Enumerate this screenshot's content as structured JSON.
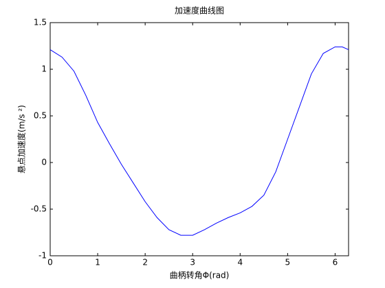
{
  "chart_data": {
    "type": "line",
    "title": "加速度曲线图",
    "xlabel": "曲柄转角Φ(rad)",
    "ylabel": "悬点加速度(m/s ²)",
    "x": [
      0,
      0.25,
      0.5,
      0.75,
      1.0,
      1.25,
      1.5,
      1.75,
      2.0,
      2.25,
      2.5,
      2.75,
      3.0,
      3.25,
      3.5,
      3.75,
      4.0,
      4.25,
      4.5,
      4.75,
      5.0,
      5.25,
      5.5,
      5.75,
      6.0,
      6.15,
      6.2832
    ],
    "series": [
      {
        "color": "#0000ff",
        "values": [
          1.21,
          1.13,
          0.98,
          0.72,
          0.43,
          0.2,
          -0.02,
          -0.22,
          -0.42,
          -0.59,
          -0.72,
          -0.78,
          -0.78,
          -0.72,
          -0.65,
          -0.59,
          -0.54,
          -0.47,
          -0.35,
          -0.1,
          0.25,
          0.6,
          0.95,
          1.17,
          1.24,
          1.24,
          1.21
        ]
      }
    ],
    "xlim": [
      0,
      6.2832
    ],
    "ylim": [
      -1,
      1.5
    ],
    "xticks": [
      0,
      1,
      2,
      3,
      4,
      5,
      6
    ],
    "yticks": [
      -1,
      -0.5,
      0,
      0.5,
      1,
      1.5
    ],
    "grid": false
  }
}
